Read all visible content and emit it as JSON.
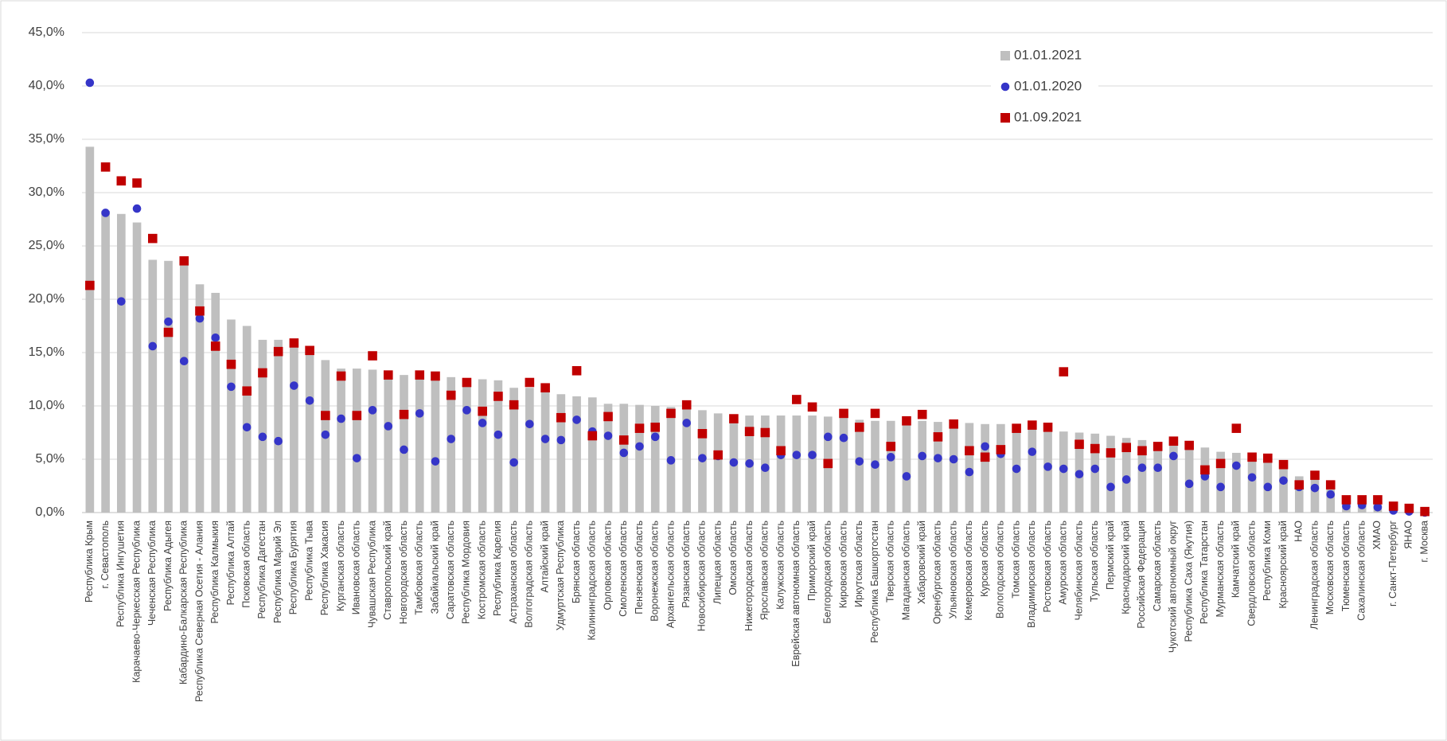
{
  "chart_data": {
    "type": "bar",
    "categories": [
      "Республика Крым",
      "г. Севастополь",
      "Республика Ингушетия",
      "Карачаево-Черкесская Республика",
      "Чеченская Республика",
      "Республика Адыгея",
      "Кабардино-Балкарская Республика",
      "Республика Северная Осетия - Алания",
      "Республика Калмыкия",
      "Республика Алтай",
      "Псковская область",
      "Республика Дагестан",
      "Республика Марий Эл",
      "Республика Бурятия",
      "Республика Тыва",
      "Республика Хакасия",
      "Курганская область",
      "Ивановская область",
      "Чувашская Республика",
      "Ставропольский край",
      "Новгородская область",
      "Тамбовская область",
      "Забайкальский край",
      "Саратовская область",
      "Республика Мордовия",
      "Костромская область",
      "Республика Карелия",
      "Астраханская область",
      "Волгоградская область",
      "Алтайский край",
      "Удмуртская Республика",
      "Брянская область",
      "Калининградская область",
      "Орловская область",
      "Смоленская область",
      "Пензенская область",
      "Воронежская область",
      "Архангельская область",
      "Рязанская область",
      "Новосибирская область",
      "Липецкая область",
      "Омская область",
      "Нижегородская область",
      "Ярославская область",
      "Калужская область",
      "Еврейская автономная область",
      "Приморский край",
      "Белгородская область",
      "Кировская область",
      "Иркутская область",
      "Республика Башкортостан",
      "Тверская область",
      "Магаданская область",
      "Хабаровский край",
      "Оренбургская область",
      "Ульяновская область",
      "Кемеровская область",
      "Курская область",
      "Вологодская область",
      "Томская область",
      "Владимирская область",
      "Ростовская область",
      "Амурская область",
      "Челябинская область",
      "Тульская область",
      "Пермский край",
      "Краснодарский край",
      "Российская Федерация",
      "Самарская область",
      "Чукотский автономный округ",
      "Республика Саха (Якутия)",
      "Республика Татарстан",
      "Мурманская область",
      "Камчатский край",
      "Свердловская область",
      "Республика Коми",
      "Красноярский край",
      "НАО",
      "Ленинградская область",
      "Московская область",
      "Тюменская область",
      "Сахалинская область",
      "ХМАО",
      "г. Санкт-Петербург",
      "ЯНАО",
      "г. Москва"
    ],
    "series": [
      {
        "name": "01.01.2021",
        "mark": "bar",
        "color": "#bfbfbf",
        "values": [
          34.3,
          28.3,
          28.0,
          27.2,
          23.7,
          23.6,
          23.5,
          21.4,
          20.6,
          18.1,
          17.5,
          16.2,
          16.2,
          16.0,
          15.3,
          14.3,
          13.5,
          13.5,
          13.4,
          13.0,
          12.9,
          12.9,
          12.8,
          12.7,
          12.6,
          12.5,
          12.4,
          11.7,
          11.7,
          11.3,
          11.1,
          10.9,
          10.8,
          10.2,
          10.2,
          10.1,
          10.0,
          9.9,
          9.8,
          9.6,
          9.3,
          9.2,
          9.1,
          9.1,
          9.1,
          9.1,
          9.1,
          9.0,
          8.9,
          8.7,
          8.6,
          8.6,
          8.6,
          8.6,
          8.5,
          8.4,
          8.4,
          8.3,
          8.3,
          7.9,
          7.8,
          7.7,
          7.6,
          7.5,
          7.4,
          7.2,
          7.0,
          6.8,
          6.5,
          6.4,
          6.2,
          6.1,
          5.7,
          5.6,
          5.5,
          5.1,
          4.7,
          3.4,
          3.2,
          2.4,
          1.3,
          1.2,
          1.0,
          0.7,
          0.3,
          0.1
        ]
      },
      {
        "name": "01.01.2020",
        "mark": "circle",
        "color": "#3535c8",
        "values": [
          40.3,
          28.1,
          19.8,
          28.5,
          15.6,
          17.9,
          14.2,
          18.2,
          16.4,
          11.8,
          8.0,
          7.1,
          6.7,
          11.9,
          10.5,
          7.3,
          8.8,
          5.1,
          9.6,
          8.1,
          5.9,
          9.3,
          4.8,
          6.9,
          9.6,
          8.4,
          7.3,
          4.7,
          8.3,
          6.9,
          6.8,
          8.7,
          7.6,
          7.2,
          5.6,
          6.2,
          7.1,
          4.9,
          8.4,
          5.1,
          5.3,
          4.7,
          4.6,
          4.2,
          5.4,
          5.4,
          5.4,
          7.1,
          7.0,
          4.8,
          4.5,
          5.2,
          3.4,
          5.3,
          5.1,
          5.0,
          3.8,
          6.2,
          5.5,
          4.1,
          5.7,
          4.3,
          4.1,
          3.6,
          4.1,
          2.4,
          3.1,
          4.2,
          4.2,
          5.3,
          2.7,
          3.4,
          2.4,
          4.4,
          3.3,
          2.4,
          3.0,
          2.4,
          2.3,
          1.7,
          0.6,
          0.7,
          0.5,
          0.2,
          0.1,
          0.0
        ]
      },
      {
        "name": "01.09.2021",
        "mark": "square",
        "color": "#c00000",
        "values": [
          21.3,
          32.4,
          31.1,
          30.9,
          25.7,
          16.9,
          23.6,
          18.9,
          15.6,
          13.9,
          11.4,
          13.1,
          15.1,
          15.9,
          15.2,
          9.1,
          12.8,
          9.1,
          14.7,
          12.9,
          9.2,
          12.9,
          12.8,
          11.0,
          12.2,
          9.5,
          10.9,
          10.1,
          12.2,
          11.7,
          8.9,
          13.3,
          7.2,
          9.0,
          6.8,
          7.9,
          8.0,
          9.3,
          10.1,
          7.4,
          5.4,
          8.8,
          7.6,
          7.5,
          5.8,
          10.6,
          9.9,
          4.6,
          9.3,
          8.0,
          9.3,
          6.2,
          8.6,
          9.2,
          7.1,
          8.3,
          5.8,
          5.2,
          5.9,
          7.9,
          8.2,
          8.0,
          13.2,
          6.4,
          6.0,
          5.6,
          6.1,
          5.8,
          6.2,
          6.7,
          6.3,
          4.0,
          4.6,
          7.9,
          5.2,
          5.1,
          4.5,
          2.6,
          3.5,
          2.6,
          1.2,
          1.2,
          1.2,
          0.6,
          0.4,
          0.1
        ]
      }
    ],
    "ylim": [
      0,
      45
    ],
    "yticks": [
      {
        "value": 0,
        "label": "0,0%"
      },
      {
        "value": 5,
        "label": "5,0%"
      },
      {
        "value": 10,
        "label": "10,0%"
      },
      {
        "value": 15,
        "label": "15,0%"
      },
      {
        "value": 20,
        "label": "20,0%"
      },
      {
        "value": 25,
        "label": "25,0%"
      },
      {
        "value": 30,
        "label": "30,0%"
      },
      {
        "value": 35,
        "label": "35,0%"
      },
      {
        "value": 40,
        "label": "40,0%"
      },
      {
        "value": 45,
        "label": "45,0%"
      }
    ],
    "grid": true,
    "legend": "top-right"
  }
}
